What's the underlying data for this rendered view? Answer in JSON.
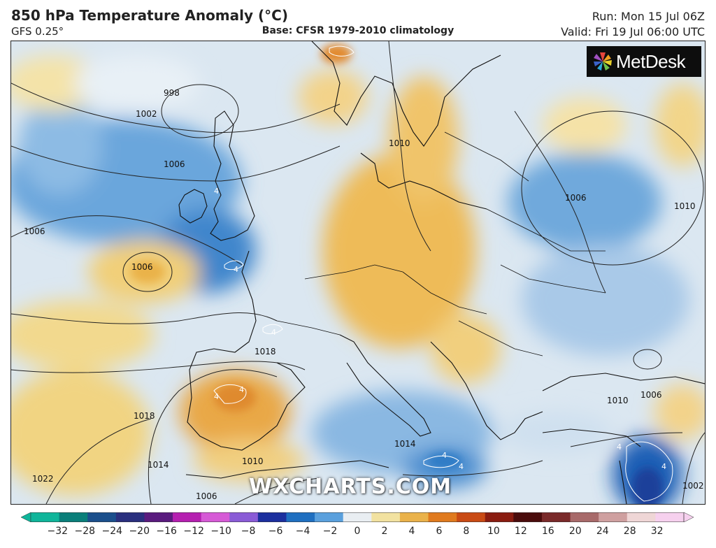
{
  "header": {
    "title": "850 hPa Temperature Anomaly (°C)",
    "model": "GFS 0.25°",
    "base": "Base: CFSR 1979-2010 climatology",
    "run": "Run: Mon 15 Jul 06Z",
    "valid": "Valid: Fri 19 Jul 06:00 UTC"
  },
  "brand": {
    "name": "MetDesk",
    "icon": "metdesk-pinwheel-icon"
  },
  "watermark": "WXCHARTS.COM",
  "isobar_labels": [
    "998",
    "1002",
    "1006",
    "1006",
    "1006",
    "1010",
    "1010",
    "1006",
    "1018",
    "1018",
    "1022",
    "1014",
    "1010",
    "1014",
    "1010",
    "1006",
    "1002",
    "1006"
  ],
  "anomaly_labels": [
    "4",
    "4",
    "4",
    "4",
    "4",
    "4",
    "4",
    "4",
    "4"
  ],
  "colors": {
    "cold_deep": "#1f6fc0",
    "cold_mid": "#5aa0dd",
    "cold_light": "#bcd6ee",
    "neutral": "#eef1f3",
    "warm_light": "#f4dc8f",
    "warm_mid": "#eab24a",
    "warm_deep": "#e08a2a",
    "coast": "#111111"
  },
  "scale": {
    "labels": [
      "−32",
      "−28",
      "−24",
      "−20",
      "−16",
      "−12",
      "−10",
      "−8",
      "−6",
      "−4",
      "−2",
      "0",
      "2",
      "4",
      "6",
      "8",
      "10",
      "12",
      "16",
      "20",
      "24",
      "28",
      "32"
    ],
    "colors": [
      "#0fb59a",
      "#0a7f7a",
      "#1b4f8c",
      "#2a2f7e",
      "#5a1b7e",
      "#b51fb0",
      "#d65ad6",
      "#8a5bd6",
      "#1c2f9e",
      "#1f6fc0",
      "#5aa0dd",
      "#e9eef2",
      "#f2e2a0",
      "#eab24a",
      "#e07a1e",
      "#c94a14",
      "#8a1c10",
      "#4a0c0c",
      "#7a2a2a",
      "#a86a6a",
      "#cfa0a0",
      "#efd6d6",
      "#f6d0ee"
    ]
  }
}
